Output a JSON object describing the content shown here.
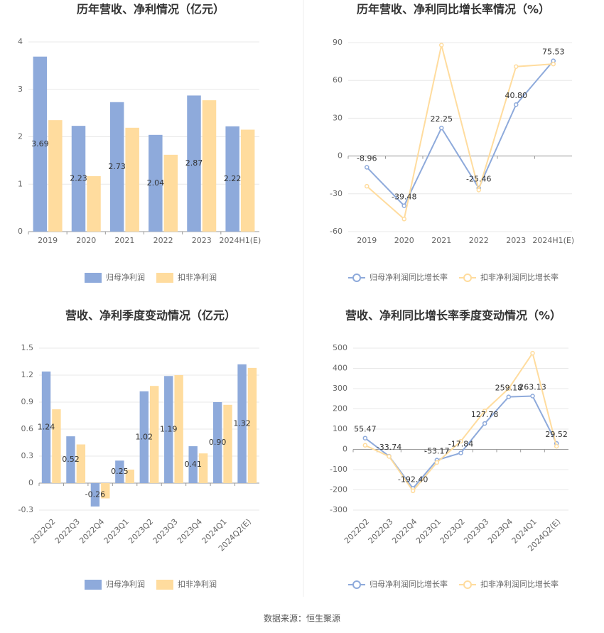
{
  "chart_data": [
    {
      "type": "bar",
      "title": "历年营收、净利情况（亿元）",
      "categories": [
        "2019",
        "2020",
        "2021",
        "2022",
        "2023",
        "2024H1(E)"
      ],
      "series": [
        {
          "name": "归母净利润",
          "color": "#8eaadb",
          "show_labels": true,
          "values": [
            3.69,
            2.23,
            2.73,
            2.04,
            2.87,
            2.22
          ]
        },
        {
          "name": "扣非净利润",
          "color": "#ffdc9e",
          "values": [
            2.35,
            1.17,
            2.19,
            1.62,
            2.77,
            2.15
          ]
        }
      ],
      "ylim": [
        0,
        4
      ],
      "yticks": [
        0,
        1,
        2,
        3,
        4
      ],
      "grid": true
    },
    {
      "type": "line",
      "title": "历年营收、净利同比增长率情况（%）",
      "categories": [
        "2019",
        "2020",
        "2021",
        "2022",
        "2023",
        "2024H1(E)"
      ],
      "series": [
        {
          "name": "归母净利润同比增长率",
          "color": "#8eaadb",
          "show_labels": true,
          "values": [
            -8.96,
            -39.48,
            22.25,
            -25.46,
            40.8,
            75.53
          ],
          "value_labels": [
            "-8.96",
            "-39.48",
            "22.25",
            "-25.46",
            "40.80",
            "75.53"
          ]
        },
        {
          "name": "扣非净利润同比增长率",
          "color": "#ffdc9e",
          "values": [
            -24,
            -50,
            88,
            -27,
            71,
            73
          ]
        }
      ],
      "ylim": [
        -60,
        90
      ],
      "yticks": [
        -60,
        -30,
        0,
        30,
        60,
        90
      ],
      "grid": true
    },
    {
      "type": "bar",
      "title": "营收、净利季度变动情况（亿元）",
      "categories": [
        "2022Q2",
        "2022Q3",
        "2022Q4",
        "2023Q1",
        "2023Q2",
        "2023Q3",
        "2023Q4",
        "2024Q1",
        "2024Q2(E)"
      ],
      "series": [
        {
          "name": "归母净利润",
          "color": "#8eaadb",
          "show_labels": true,
          "values": [
            1.24,
            0.52,
            -0.26,
            0.25,
            1.02,
            1.19,
            0.41,
            0.9,
            1.32
          ],
          "value_labels": [
            "1.24",
            "0.52",
            "-0.26",
            "0.25",
            "1.02",
            "1.19",
            "0.41",
            "0.90",
            "1.32"
          ]
        },
        {
          "name": "扣非净利润",
          "color": "#ffdc9e",
          "values": [
            0.82,
            0.43,
            -0.17,
            0.15,
            1.08,
            1.2,
            0.33,
            0.87,
            1.28
          ]
        }
      ],
      "ylim": [
        -0.3,
        1.5
      ],
      "yticks": [
        -0.3,
        0,
        0.3,
        0.6,
        0.9,
        1.2,
        1.5
      ],
      "grid": true
    },
    {
      "type": "line",
      "title": "营收、净利同比增长率季度变动情况（%）",
      "categories": [
        "2022Q2",
        "2022Q3",
        "2022Q4",
        "2023Q1",
        "2023Q2",
        "2023Q3",
        "2023Q4",
        "2024Q1",
        "2024Q2(E)"
      ],
      "series": [
        {
          "name": "归母净利润同比增长率",
          "color": "#8eaadb",
          "show_labels": true,
          "values": [
            55.47,
            -33.74,
            -192.4,
            -53.17,
            -17.84,
            127.78,
            259.18,
            263.13,
            29.52
          ],
          "value_labels": [
            "55.47",
            "-33.74",
            "-192.40",
            "-53.17",
            "-17.84",
            "127.78",
            "259.18",
            "263.13",
            "29.52"
          ]
        },
        {
          "name": "扣非净利润同比增长率",
          "color": "#ffdc9e",
          "values": [
            20,
            -35,
            -205,
            -65,
            40,
            190,
            300,
            475,
            15
          ]
        }
      ],
      "ylim": [
        -300,
        500
      ],
      "yticks": [
        -300,
        -200,
        -100,
        0,
        100,
        200,
        300,
        400,
        500
      ],
      "grid": true
    }
  ],
  "source": "数据来源：恒生聚源"
}
